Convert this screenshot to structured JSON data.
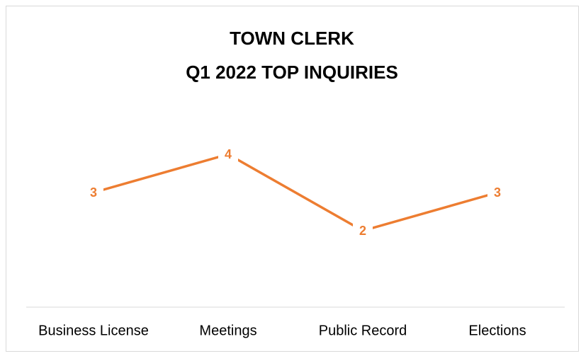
{
  "chart_data": {
    "type": "line",
    "title": [
      "TOWN CLERK",
      "Q1 2022 TOP INQUIRIES"
    ],
    "categories": [
      "Business License",
      "Meetings",
      "Public Record",
      "Elections"
    ],
    "values": [
      3,
      4,
      2,
      3
    ],
    "color": "#ed7d31",
    "ylim": [
      0,
      5
    ]
  }
}
